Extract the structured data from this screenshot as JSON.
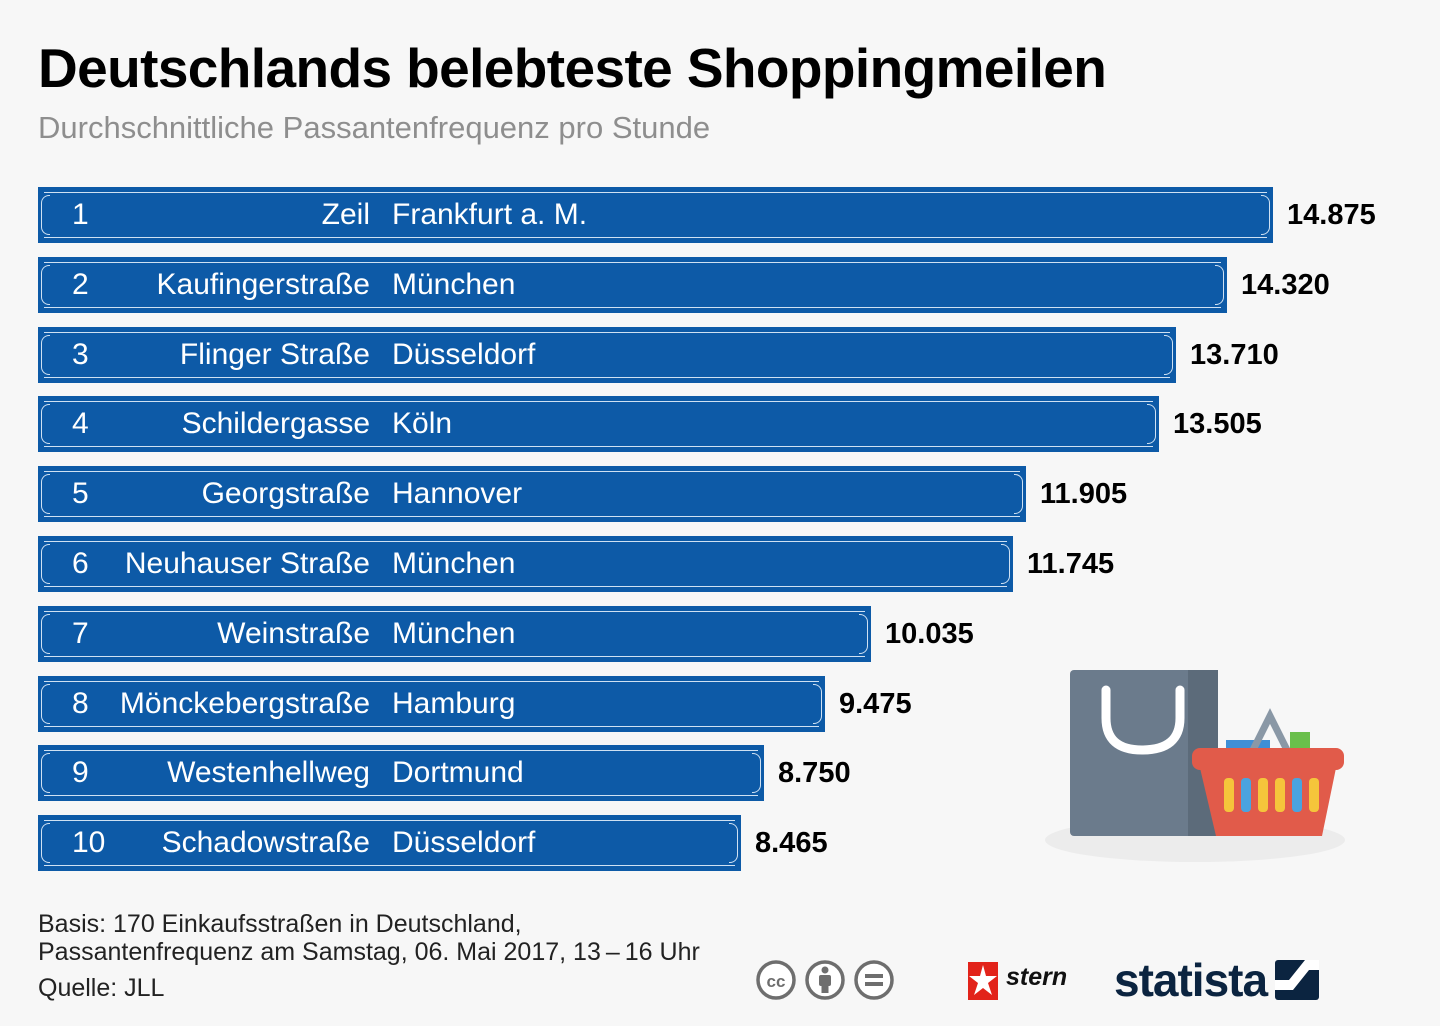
{
  "title": "Deutschlands belebteste Shoppingmeilen",
  "subtitle": "Durchschnittliche Passantenfrequenz pro Stunde",
  "colors": {
    "bar": "#0d5aa7",
    "bar_frame": "#cfe1f3",
    "background": "#f7f7f7"
  },
  "chart_data": {
    "type": "bar",
    "orientation": "horizontal",
    "title": "Deutschlands belebteste Shoppingmeilen",
    "subtitle": "Durchschnittliche Passantenfrequenz pro Stunde",
    "xlabel": "",
    "ylabel": "",
    "grid": false,
    "rows": [
      {
        "rank": "1",
        "street": "Zeil",
        "city": "Frankfurt a. M.",
        "value": 14875,
        "label": "14.875"
      },
      {
        "rank": "2",
        "street": "Kaufingerstraße",
        "city": "München",
        "value": 14320,
        "label": "14.320"
      },
      {
        "rank": "3",
        "street": "Flinger Straße",
        "city": "Düsseldorf",
        "value": 13710,
        "label": "13.710"
      },
      {
        "rank": "4",
        "street": "Schildergasse",
        "city": "Köln",
        "value": 13505,
        "label": "13.505"
      },
      {
        "rank": "5",
        "street": "Georgstraße",
        "city": "Hannover",
        "value": 11905,
        "label": "11.905"
      },
      {
        "rank": "6",
        "street": "Neuhauser Straße",
        "city": "München",
        "value": 11745,
        "label": "11.745"
      },
      {
        "rank": "7",
        "street": "Weinstraße",
        "city": "München",
        "value": 10035,
        "label": "10.035"
      },
      {
        "rank": "8",
        "street": "Mönckebergstraße",
        "city": "Hamburg",
        "value": 9475,
        "label": "9.475"
      },
      {
        "rank": "9",
        "street": "Westenhellweg",
        "city": "Dortmund",
        "value": 8750,
        "label": "8.750"
      },
      {
        "rank": "10",
        "street": "Schadowstraße",
        "city": "Düsseldorf",
        "value": 8465,
        "label": "8.465"
      }
    ]
  },
  "footer": {
    "basis_line1": "Basis: 170 Einkaufsstraßen in Deutschland,",
    "basis_line2": "Passantenfrequenz am Samstag, 06. Mai 2017, 13 – 16 Uhr",
    "source": "Quelle: JLL"
  },
  "branding": {
    "stern": "stern",
    "statista": "statista"
  },
  "icons": [
    "cc-icon",
    "attribution-icon",
    "no-derivatives-icon",
    "stern-star-icon",
    "statista-icon",
    "shopping-bag-icon",
    "shopping-basket-icon"
  ]
}
